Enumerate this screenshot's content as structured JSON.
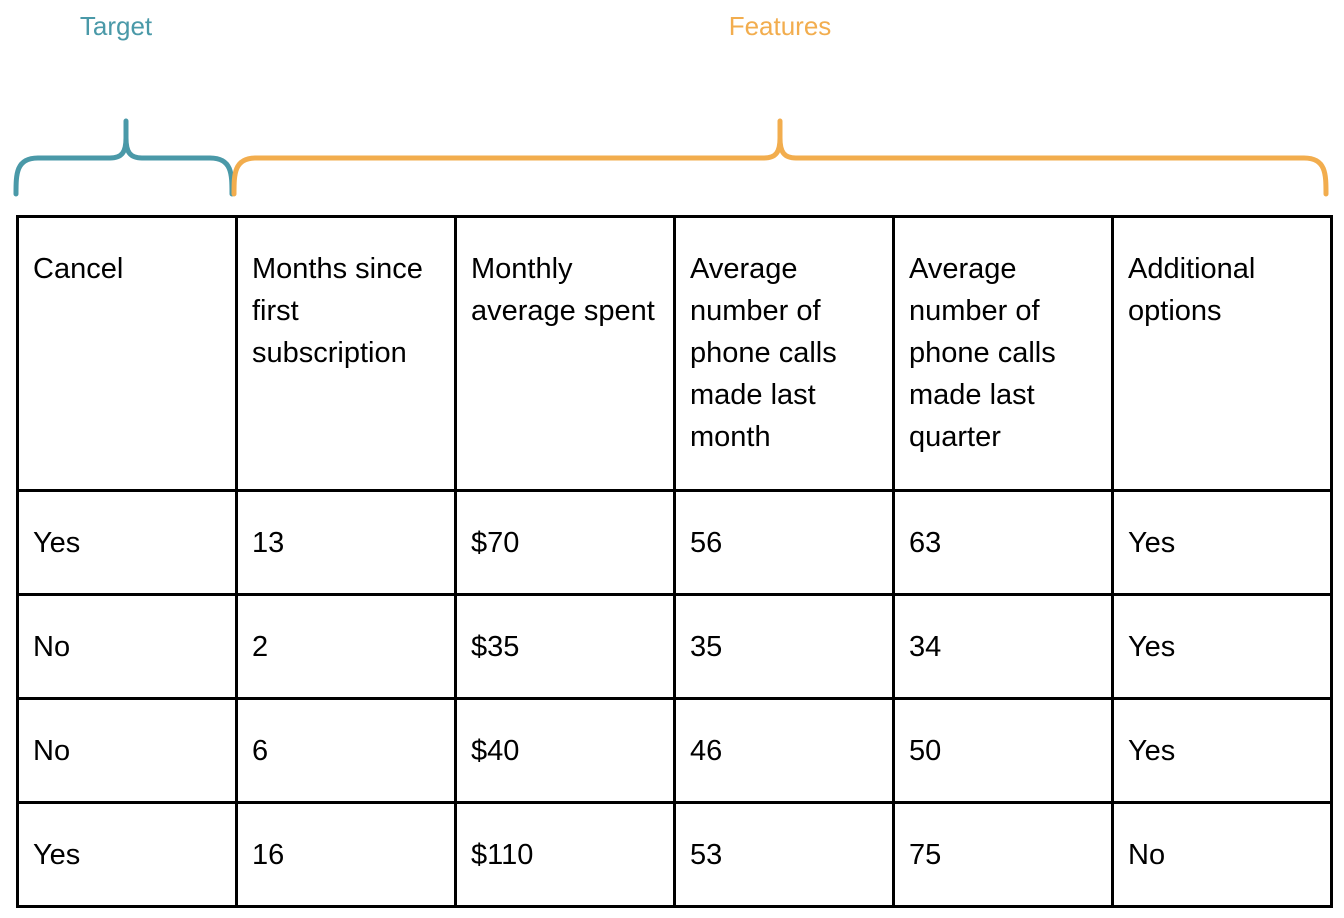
{
  "groups": {
    "target": {
      "label": "Target",
      "color": "#4a99a8"
    },
    "features": {
      "label": "Features",
      "color": "#f2ad4e"
    }
  },
  "table": {
    "headers": [
      "Cancel",
      "Months since first subscription",
      "Monthly average spent",
      "Average number of phone calls made last month",
      "Average number of phone calls made last quarter",
      "Additional options"
    ],
    "rows": [
      [
        "Yes",
        "13",
        "$70",
        "56",
        "63",
        "Yes"
      ],
      [
        "No",
        "2",
        "$35",
        "35",
        "34",
        "Yes"
      ],
      [
        "No",
        "6",
        "$40",
        "46",
        "50",
        "Yes"
      ],
      [
        "Yes",
        "16",
        "$110",
        "53",
        "75",
        "No"
      ]
    ]
  }
}
